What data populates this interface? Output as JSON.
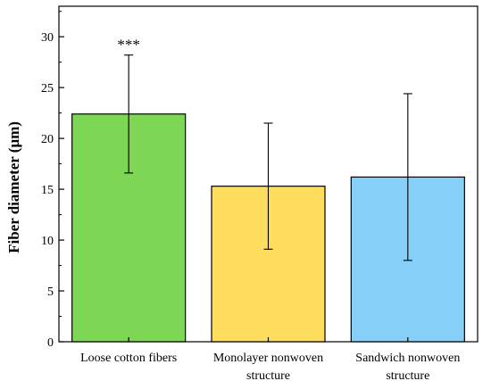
{
  "chart_data": {
    "type": "bar",
    "title": "",
    "xlabel": "",
    "ylabel": "Fiber diameter (μm)",
    "ylim": [
      0,
      33
    ],
    "yticks": [
      0,
      5,
      10,
      15,
      20,
      25,
      30
    ],
    "grid": false,
    "categories": [
      [
        "Loose cotton fibers"
      ],
      [
        "Monolayer nonwoven",
        "structure"
      ],
      [
        "Sandwich nonwoven",
        "structure"
      ]
    ],
    "values": [
      22.4,
      15.3,
      16.2
    ],
    "error_bars": [
      {
        "low": 16.6,
        "high": 28.2
      },
      {
        "low": 9.1,
        "high": 21.5
      },
      {
        "low": 8.0,
        "high": 24.4
      }
    ],
    "bar_colors": [
      "#7dd755",
      "#fedc5d",
      "#85cff8"
    ],
    "annotations": [
      {
        "bar_index": 0,
        "text": "***"
      }
    ]
  }
}
